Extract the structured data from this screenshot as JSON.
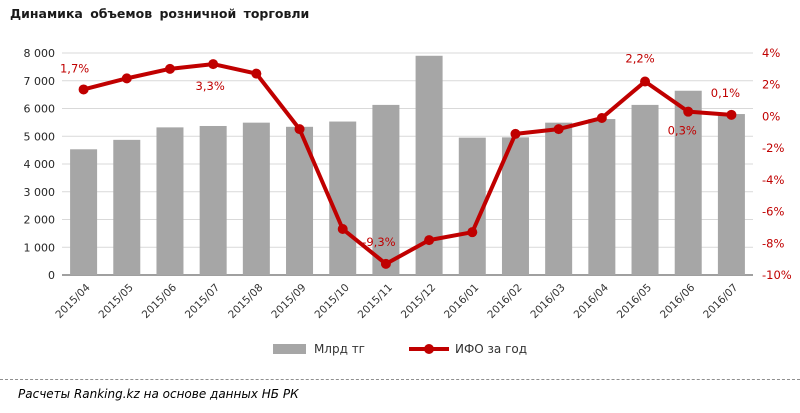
{
  "title": "Динамика объемов розничной торговли",
  "footer": "Расчеты Ranking.kz на основе данных НБ РК",
  "legend": {
    "bars": "Млрд тг",
    "line": "ИФО за год"
  },
  "colors": {
    "bar": "#A6A6A6",
    "line": "#C00000",
    "grid": "#D9D9D9",
    "axis": "#808080",
    "left_axis_text": "#262626",
    "right_axis_text": "#C00000",
    "x_axis_text": "#333333",
    "title_text": "#1A1A1A"
  },
  "chart_data": {
    "type": "combo-bar-line",
    "categories": [
      "2015/04",
      "2015/05",
      "2015/06",
      "2015/07",
      "2015/08",
      "2015/09",
      "2015/10",
      "2015/11",
      "2015/12",
      "2016/01",
      "2016/02",
      "2016/03",
      "2016/04",
      "2016/05",
      "2016/06",
      "2016/07"
    ],
    "series": [
      {
        "name": "Млрд тг",
        "type": "bar",
        "axis": "left",
        "values": [
          4530,
          4870,
          5320,
          5370,
          5490,
          5340,
          5530,
          6130,
          7900,
          4950,
          4960,
          5490,
          5620,
          6130,
          6640,
          5800
        ]
      },
      {
        "name": "ИФО за год",
        "type": "line",
        "axis": "right",
        "values": [
          1.7,
          2.4,
          3.0,
          3.3,
          2.7,
          -0.8,
          -7.1,
          -9.3,
          -7.8,
          -7.3,
          -1.1,
          -0.8,
          -0.1,
          2.2,
          0.3,
          0.1
        ],
        "labels": {
          "0": "1,7%",
          "3": "3,3%",
          "7": "-9,3%",
          "13": "2,2%",
          "14": "0,3%",
          "15": "0,1%"
        }
      }
    ],
    "left_axis": {
      "min": 0,
      "max": 8000,
      "ticks": [
        "8 000",
        "7 000",
        "6 000",
        "5 000",
        "4 000",
        "3 000",
        "2 000",
        "1 000",
        "0"
      ]
    },
    "right_axis": {
      "min": -10,
      "max": 4,
      "ticks": [
        "4%",
        "2%",
        "0%",
        "-2%",
        "-4%",
        "-6%",
        "-8%",
        "-10%"
      ]
    },
    "grid": "horizontal-only",
    "legend_position": "bottom"
  }
}
